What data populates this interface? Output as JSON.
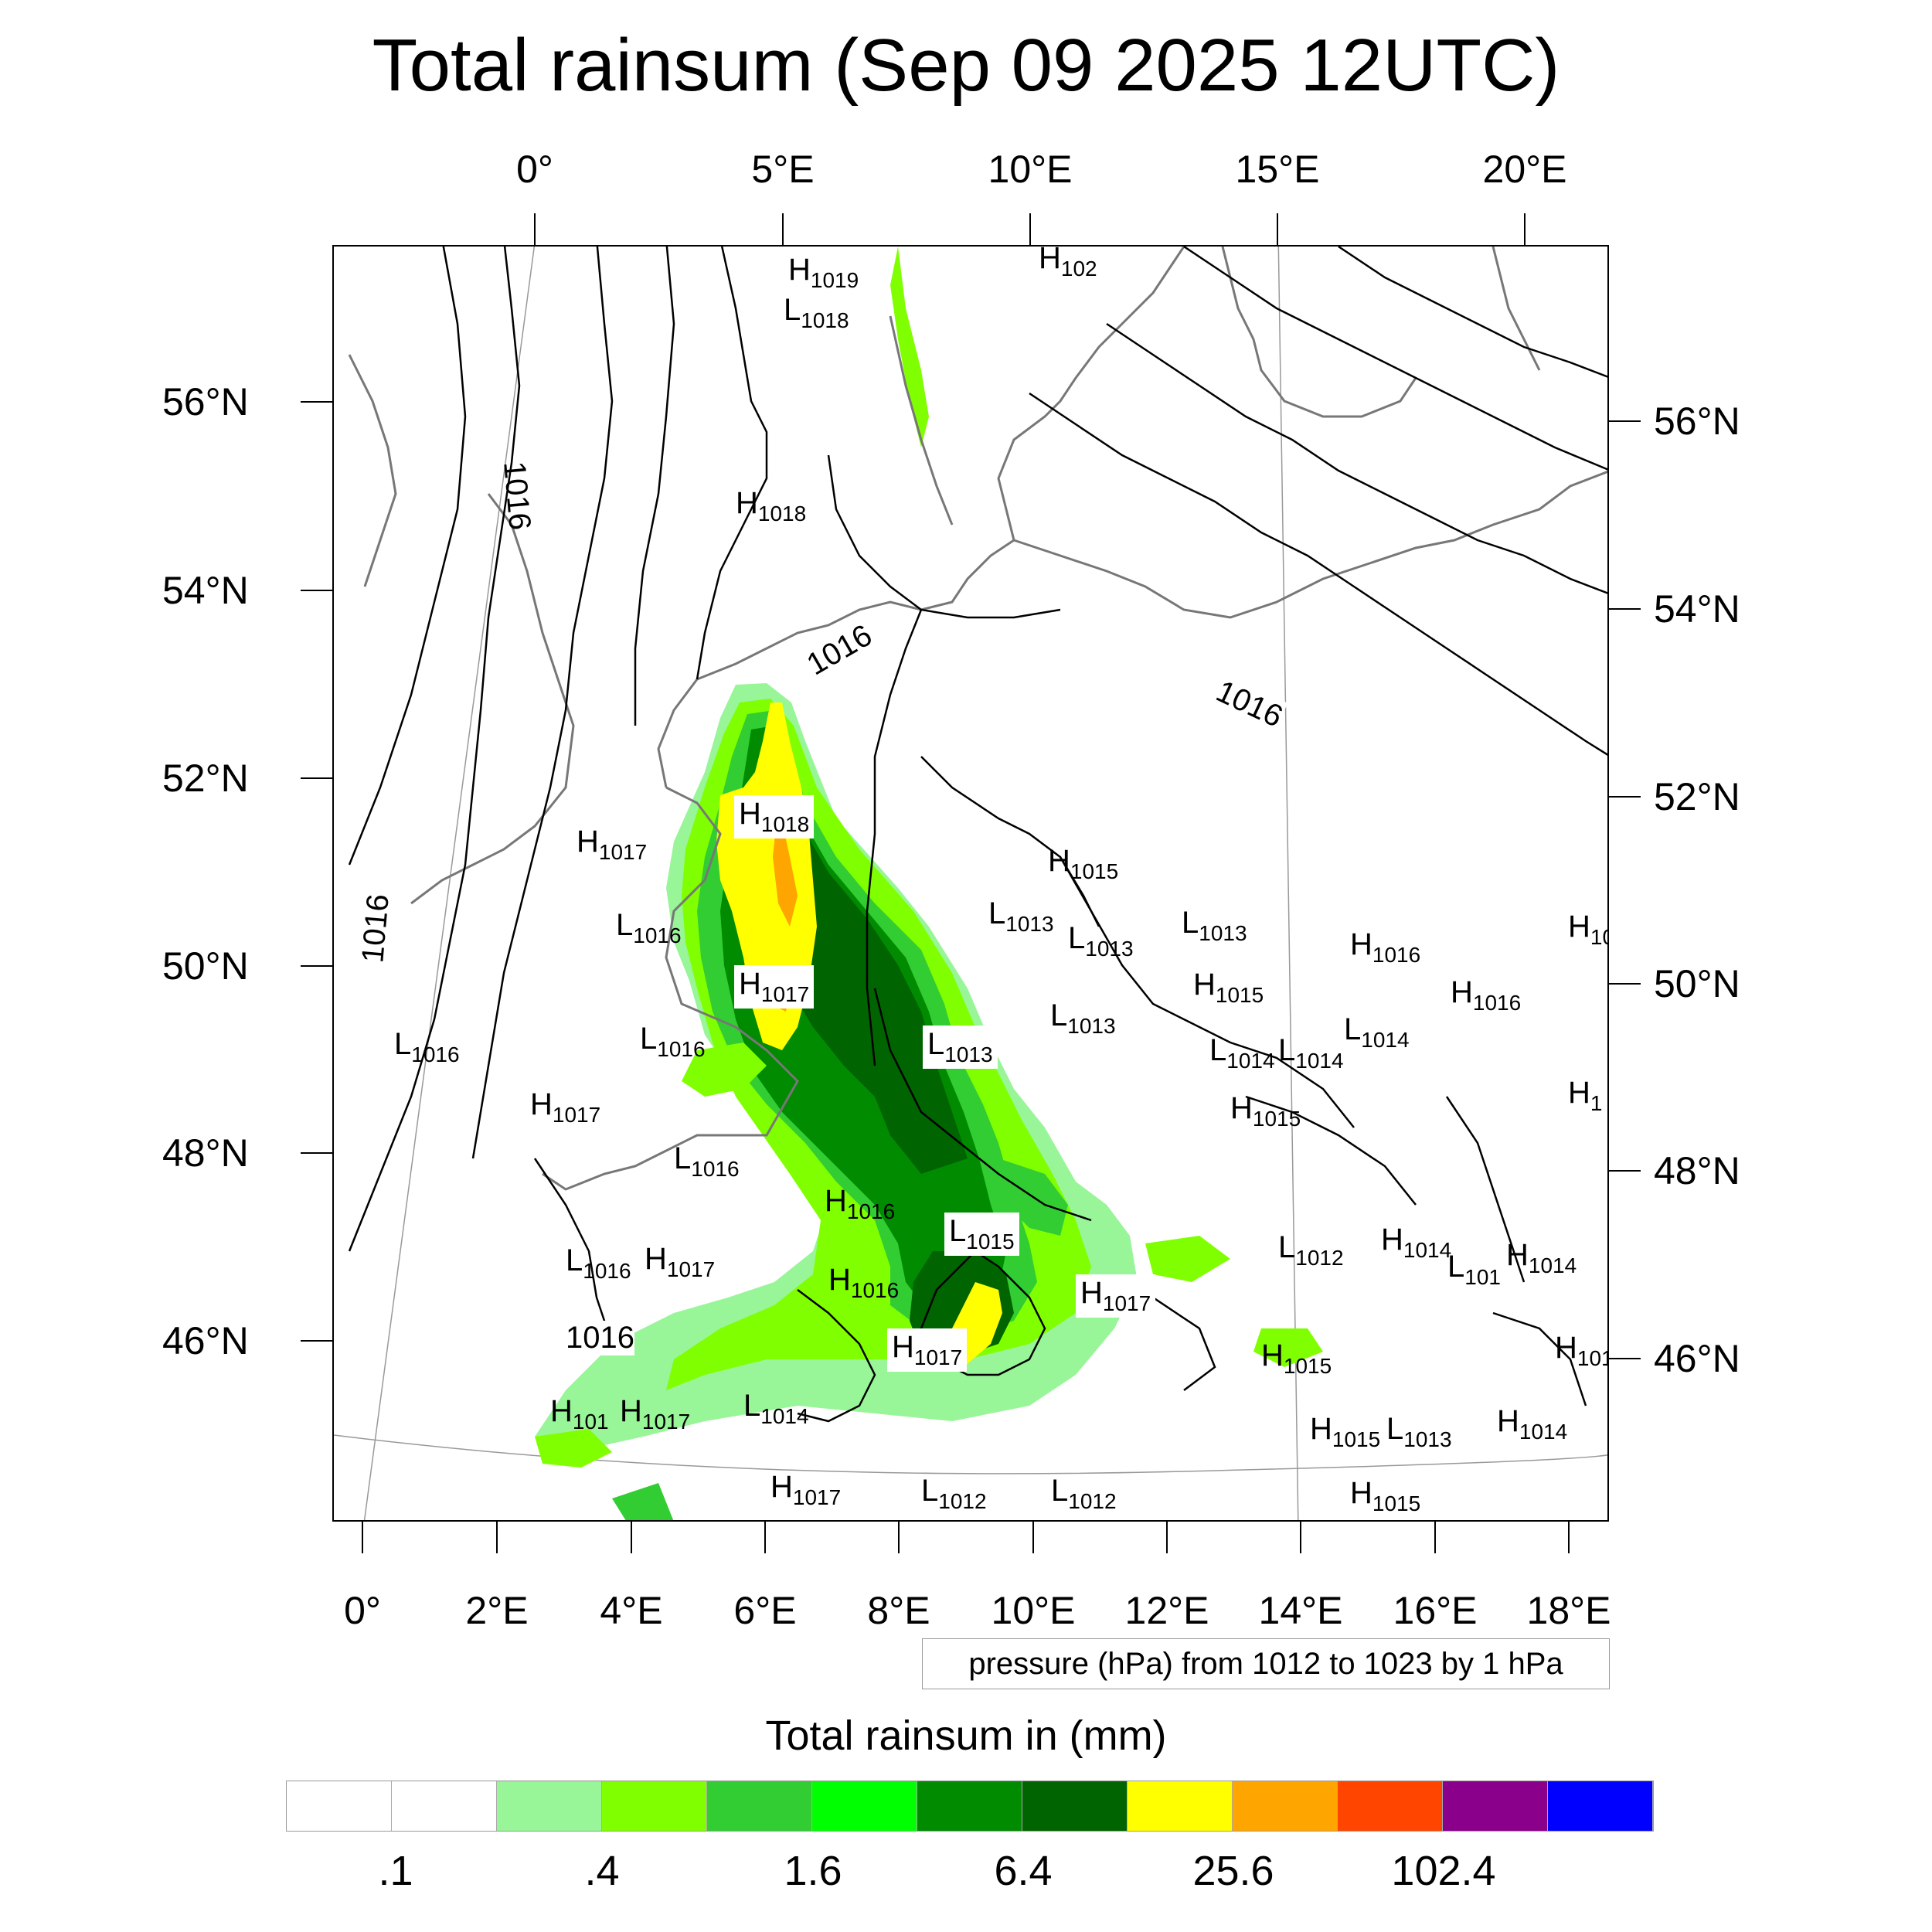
{
  "title": "Total rainsum (Sep 09 2025 12UTC)",
  "top_lon_labels": [
    "0°",
    "5°E",
    "10°E",
    "15°E",
    "20°E"
  ],
  "bottom_lon_labels": [
    "0°",
    "2°E",
    "4°E",
    "6°E",
    "8°E",
    "10°E",
    "12°E",
    "14°E",
    "16°E",
    "18°E"
  ],
  "left_lat_labels": [
    "56°N",
    "54°N",
    "52°N",
    "50°N",
    "48°N",
    "46°N"
  ],
  "right_lat_labels": [
    "56°N",
    "54°N",
    "52°N",
    "50°N",
    "48°N",
    "46°N"
  ],
  "pressure_info": "pressure (hPa) from 1012 to 1023 by 1 hPa",
  "colorbar": {
    "title": "Total rainsum in (mm)",
    "tick_labels": [
      ".1",
      ".4",
      "1.6",
      "6.4",
      "25.6",
      "102.4"
    ],
    "colors": [
      "#ffffff",
      "#ffffff",
      "#98f598",
      "#80ff00",
      "#32cd32",
      "#00ff00",
      "#008b00",
      "#006400",
      "#ffff00",
      "#ffa500",
      "#ff4500",
      "#8b008b",
      "#0000ff"
    ]
  },
  "isobar_labels": [
    {
      "text": "1016"
    },
    {
      "text": "1016"
    },
    {
      "text": "1016"
    },
    {
      "text": "1016"
    },
    {
      "text": "1016"
    }
  ],
  "pressure_centers": [
    {
      "type": "H",
      "value": "1019"
    },
    {
      "type": "H",
      "value": "102"
    },
    {
      "type": "L",
      "value": "1018"
    },
    {
      "type": "H",
      "value": "1018"
    },
    {
      "type": "H",
      "value": "1018"
    },
    {
      "type": "H",
      "value": "1017"
    },
    {
      "type": "L",
      "value": "1016"
    },
    {
      "type": "H",
      "value": "1017"
    },
    {
      "type": "L",
      "value": "1016"
    },
    {
      "type": "L",
      "value": "1016"
    },
    {
      "type": "H",
      "value": "1017"
    },
    {
      "type": "L",
      "value": "1016"
    },
    {
      "type": "H",
      "value": "1015"
    },
    {
      "type": "L",
      "value": "1013"
    },
    {
      "type": "L",
      "value": "1013"
    },
    {
      "type": "L",
      "value": "1013"
    },
    {
      "type": "H",
      "value": "1016"
    },
    {
      "type": "H",
      "value": "1016"
    },
    {
      "type": "H",
      "value": "1015"
    },
    {
      "type": "L",
      "value": "1013"
    },
    {
      "type": "L",
      "value": "1013"
    },
    {
      "type": "L",
      "value": "1014"
    },
    {
      "type": "L",
      "value": "1014"
    },
    {
      "type": "L",
      "value": "1014"
    },
    {
      "type": "H",
      "value": "1015"
    },
    {
      "type": "H",
      "value": "1016"
    },
    {
      "type": "L",
      "value": "1015"
    },
    {
      "type": "L",
      "value": "1016"
    },
    {
      "type": "H",
      "value": "1017"
    },
    {
      "type": "H",
      "value": "1016"
    },
    {
      "type": "H",
      "value": "1017"
    },
    {
      "type": "H",
      "value": "1017"
    },
    {
      "type": "L",
      "value": "1012"
    },
    {
      "type": "H",
      "value": "1014"
    },
    {
      "type": "L",
      "value": "101"
    },
    {
      "type": "H",
      "value": "1014"
    },
    {
      "type": "H",
      "value": "1015"
    },
    {
      "type": "H",
      "value": "101"
    },
    {
      "type": "H",
      "value": "1017"
    },
    {
      "type": "L",
      "value": "1014"
    },
    {
      "type": "H",
      "value": "1015"
    },
    {
      "type": "L",
      "value": "1013"
    },
    {
      "type": "H",
      "value": "1014"
    },
    {
      "type": "H",
      "value": "1017"
    },
    {
      "type": "L",
      "value": "1012"
    },
    {
      "type": "L",
      "value": "1012"
    },
    {
      "type": "H",
      "value": "1015"
    },
    {
      "type": "H",
      "value": "10"
    },
    {
      "type": "H",
      "value": "1"
    },
    {
      "type": "H",
      "value": "101"
    }
  ]
}
